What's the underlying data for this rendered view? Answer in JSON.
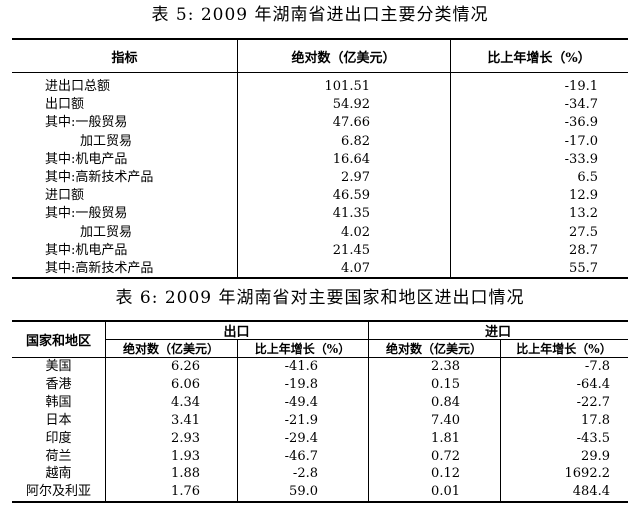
{
  "table5": {
    "title": "表 5: 2009 年湖南省进出口主要分类情况",
    "header": [
      "指标",
      "绝对数（亿美元）",
      "比上年增长（%）"
    ],
    "rows": [
      [
        "进出口总额",
        "101.51",
        "-19.1"
      ],
      [
        "出口额",
        "54.92",
        "-34.7"
      ],
      [
        "其中:一般贸易",
        "47.66",
        "-36.9"
      ],
      [
        "加工贸易",
        "6.82",
        "-17.0"
      ],
      [
        "其中:机电产品",
        "16.64",
        "-33.9"
      ],
      [
        "其中:高新技术产品",
        "2.97",
        "6.5"
      ],
      [
        "进口额",
        "46.59",
        "12.9"
      ],
      [
        "其中:一般贸易",
        "41.35",
        "13.2"
      ],
      [
        "加工贸易",
        "4.02",
        "27.5"
      ],
      [
        "其中:机电产品",
        "21.45",
        "28.7"
      ],
      [
        "其中:高新技术产品",
        "4.07",
        "55.7"
      ]
    ]
  },
  "table6": {
    "title": "表 6: 2009 年湖南省对主要国家和地区进出口情况",
    "header": [
      "国家和地区",
      "出口",
      "进口"
    ],
    "subheader": [
      "绝对数（亿美元）",
      "比上年增长（%）",
      "绝对数（亿美元）",
      "比上年增长（%）"
    ],
    "rows": [
      [
        "美国",
        "6.26",
        "-41.6",
        "2.38",
        "-7.8"
      ],
      [
        "香港",
        "6.06",
        "-19.8",
        "0.15",
        "-64.4"
      ],
      [
        "韩国",
        "4.34",
        "-49.4",
        "0.84",
        "-22.7"
      ],
      [
        "日本",
        "3.41",
        "-21.9",
        "7.40",
        "17.8"
      ],
      [
        "印度",
        "2.93",
        "-29.4",
        "1.81",
        "-43.5"
      ],
      [
        "荷兰",
        "1.93",
        "-46.7",
        "0.72",
        "29.9"
      ],
      [
        "越南",
        "1.88",
        "-2.8",
        "0.12",
        "1692.2"
      ],
      [
        "阿尔及利亚",
        "1.76",
        "59.0",
        "0.01",
        "484.4"
      ]
    ]
  }
}
